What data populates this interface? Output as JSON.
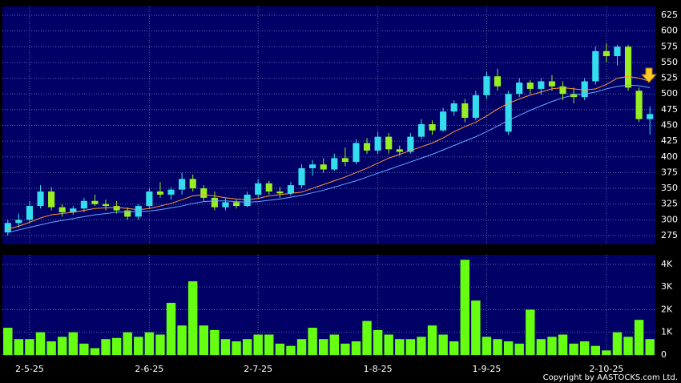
{
  "chart_data": [
    {
      "type": "candlestick",
      "up_color": "#33ddee",
      "down_color": "#99ee22",
      "grid": true,
      "ylim": [
        261,
        639
      ],
      "yticks": [
        275,
        300,
        325,
        350,
        375,
        400,
        425,
        450,
        475,
        500,
        525,
        550,
        575,
        600,
        625
      ],
      "open": [
        280,
        295,
        300,
        322,
        345,
        320,
        312,
        318,
        330,
        325,
        322,
        315,
        305,
        322,
        345,
        340,
        348,
        365,
        350,
        335,
        320,
        328,
        322,
        340,
        358,
        345,
        342,
        355,
        382,
        388,
        380,
        398,
        392,
        422,
        410,
        432,
        412,
        408,
        432,
        452,
        442,
        472,
        485,
        462,
        498,
        528,
        440,
        500,
        518,
        508,
        520,
        512,
        500,
        495,
        520,
        568,
        560,
        575,
        505,
        460
      ],
      "high": [
        300,
        310,
        330,
        355,
        352,
        325,
        322,
        335,
        340,
        332,
        330,
        320,
        325,
        350,
        360,
        352,
        375,
        372,
        355,
        345,
        335,
        332,
        345,
        365,
        362,
        352,
        360,
        388,
        395,
        398,
        405,
        415,
        428,
        430,
        440,
        438,
        418,
        438,
        460,
        458,
        478,
        490,
        492,
        505,
        535,
        540,
        505,
        525,
        522,
        525,
        530,
        520,
        510,
        525,
        575,
        580,
        578,
        578,
        510,
        480
      ],
      "low": [
        275,
        288,
        295,
        318,
        315,
        305,
        308,
        312,
        322,
        315,
        310,
        300,
        300,
        318,
        335,
        332,
        340,
        345,
        330,
        315,
        315,
        318,
        320,
        335,
        340,
        335,
        338,
        350,
        370,
        375,
        378,
        385,
        388,
        405,
        405,
        405,
        402,
        405,
        428,
        435,
        440,
        465,
        455,
        458,
        492,
        505,
        435,
        495,
        500,
        498,
        505,
        490,
        485,
        490,
        515,
        550,
        545,
        505,
        455,
        435
      ],
      "close": [
        295,
        300,
        322,
        345,
        320,
        312,
        318,
        330,
        325,
        322,
        315,
        305,
        322,
        345,
        340,
        348,
        365,
        350,
        335,
        320,
        328,
        322,
        340,
        358,
        345,
        342,
        355,
        382,
        388,
        380,
        398,
        392,
        422,
        410,
        432,
        412,
        408,
        432,
        452,
        442,
        472,
        485,
        462,
        498,
        528,
        512,
        500,
        518,
        508,
        520,
        512,
        500,
        495,
        520,
        568,
        560,
        575,
        510,
        460,
        468
      ],
      "series": [
        {
          "color": "#ff9933",
          "values": [
            285,
            290,
            296,
            303,
            308,
            310,
            312,
            315,
            318,
            319,
            320,
            318,
            316,
            318,
            322,
            326,
            332,
            338,
            340,
            338,
            335,
            333,
            332,
            334,
            338,
            340,
            342,
            344,
            350,
            356,
            362,
            368,
            375,
            382,
            390,
            398,
            404,
            410,
            416,
            422,
            430,
            440,
            448,
            455,
            465,
            476,
            485,
            492,
            498,
            503,
            508,
            510,
            508,
            506,
            508,
            515,
            525,
            528,
            525,
            520
          ]
        },
        {
          "color": "#66aaff",
          "values": [
            280,
            284,
            288,
            292,
            296,
            299,
            302,
            305,
            308,
            310,
            312,
            313,
            313,
            314,
            316,
            319,
            322,
            326,
            329,
            330,
            330,
            329,
            328,
            329,
            331,
            333,
            336,
            339,
            343,
            347,
            352,
            357,
            362,
            368,
            374,
            380,
            386,
            392,
            398,
            404,
            411,
            418,
            425,
            432,
            440,
            449,
            458,
            466,
            474,
            481,
            488,
            494,
            498,
            500,
            503,
            508,
            512,
            514,
            513,
            510
          ]
        }
      ]
    },
    {
      "type": "bar",
      "color": "#66ff11",
      "grid": true,
      "ylim": [
        0,
        4420
      ],
      "yticks": [
        0,
        {
          "value": 1000,
          "label": "1K"
        },
        {
          "value": 2000,
          "label": "2K"
        },
        {
          "value": 3000,
          "label": "3K"
        },
        {
          "value": 4000,
          "label": "4K"
        }
      ],
      "categories": [
        null,
        null,
        "2-5-25",
        null,
        null,
        null,
        null,
        null,
        null,
        null,
        null,
        null,
        null,
        "2-6-25",
        null,
        null,
        null,
        null,
        null,
        null,
        null,
        null,
        null,
        "2-7-25",
        null,
        null,
        null,
        null,
        null,
        null,
        null,
        null,
        null,
        null,
        "1-8-25",
        null,
        null,
        null,
        null,
        null,
        null,
        null,
        null,
        null,
        "1-9-25",
        null,
        null,
        null,
        null,
        null,
        null,
        null,
        null,
        null,
        null,
        "2-10-25",
        null,
        null,
        null,
        null
      ],
      "values": [
        1200,
        700,
        700,
        1000,
        600,
        800,
        1000,
        500,
        300,
        700,
        750,
        1000,
        800,
        1000,
        900,
        2300,
        1300,
        3250,
        1300,
        1100,
        700,
        600,
        700,
        900,
        900,
        500,
        400,
        700,
        1200,
        700,
        900,
        500,
        600,
        1500,
        1100,
        900,
        700,
        700,
        800,
        1300,
        900,
        600,
        4200,
        2400,
        800,
        700,
        600,
        500,
        2000,
        700,
        800,
        900,
        500,
        600,
        400,
        200,
        1000,
        800,
        1550,
        700
      ],
      "footer": "Copyright by AASTOCKS.com Ltd."
    }
  ]
}
